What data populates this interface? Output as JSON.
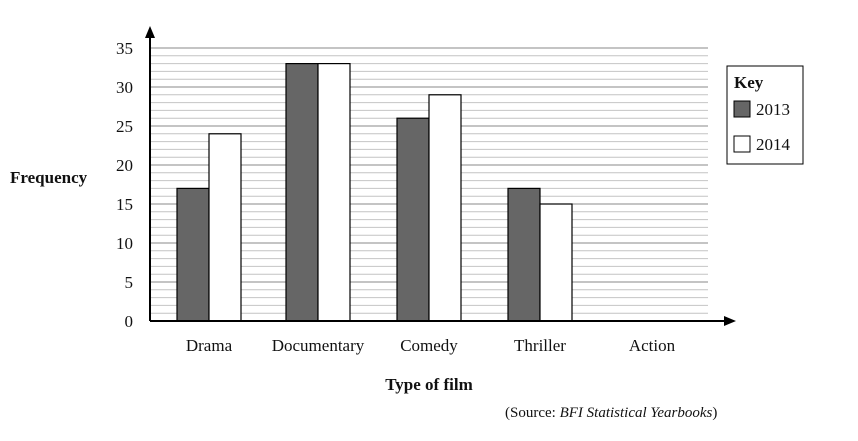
{
  "chart_data": {
    "type": "bar",
    "title": "",
    "xlabel": "Type of film",
    "ylabel": "Frequency",
    "categories": [
      "Drama",
      "Documentary",
      "Comedy",
      "Thriller",
      "Action"
    ],
    "series": [
      {
        "name": "2013",
        "values": [
          17,
          33,
          26,
          17,
          null
        ],
        "color": "#666666"
      },
      {
        "name": "2014",
        "values": [
          24,
          33,
          29,
          15,
          null
        ],
        "color": "#ffffff"
      }
    ],
    "ylim": [
      0,
      35
    ],
    "yticks": [
      0,
      5,
      10,
      15,
      20,
      25,
      30,
      35
    ],
    "grid_minor_step": 1,
    "grid": true,
    "legend": {
      "title": "Key",
      "placement": "right"
    }
  },
  "source": {
    "prefix": "(Source: ",
    "name": "BFI Statistical Yearbooks",
    "suffix": ")"
  }
}
